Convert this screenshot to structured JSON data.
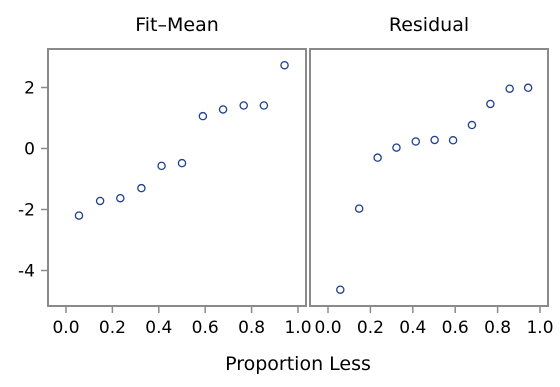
{
  "chart_data": {
    "type": "scatter",
    "xlabel": "Proportion Less",
    "ylabel": "",
    "xlim": [
      0,
      1
    ],
    "ylim": [
      -5.2,
      3.3
    ],
    "x_ticks": [
      "0.0",
      "0.2",
      "0.4",
      "0.6",
      "0.8",
      "1.0"
    ],
    "y_ticks": [
      "2",
      "0",
      "-2",
      "-4"
    ],
    "grid": false,
    "panels": [
      {
        "title": "Fit–Mean",
        "x": [
          0.056,
          0.147,
          0.234,
          0.325,
          0.412,
          0.5,
          0.59,
          0.677,
          0.766,
          0.853,
          0.942
        ],
        "y": [
          -2.2,
          -1.72,
          -1.63,
          -1.3,
          -0.57,
          -0.48,
          1.06,
          1.28,
          1.41,
          1.41,
          2.73
        ]
      },
      {
        "title": "Residual",
        "x": [
          0.058,
          0.147,
          0.234,
          0.323,
          0.414,
          0.503,
          0.59,
          0.679,
          0.766,
          0.857,
          0.944
        ],
        "y": [
          -4.63,
          -1.97,
          -0.3,
          0.03,
          0.23,
          0.28,
          0.27,
          0.77,
          1.46,
          1.96,
          1.99
        ]
      }
    ]
  }
}
